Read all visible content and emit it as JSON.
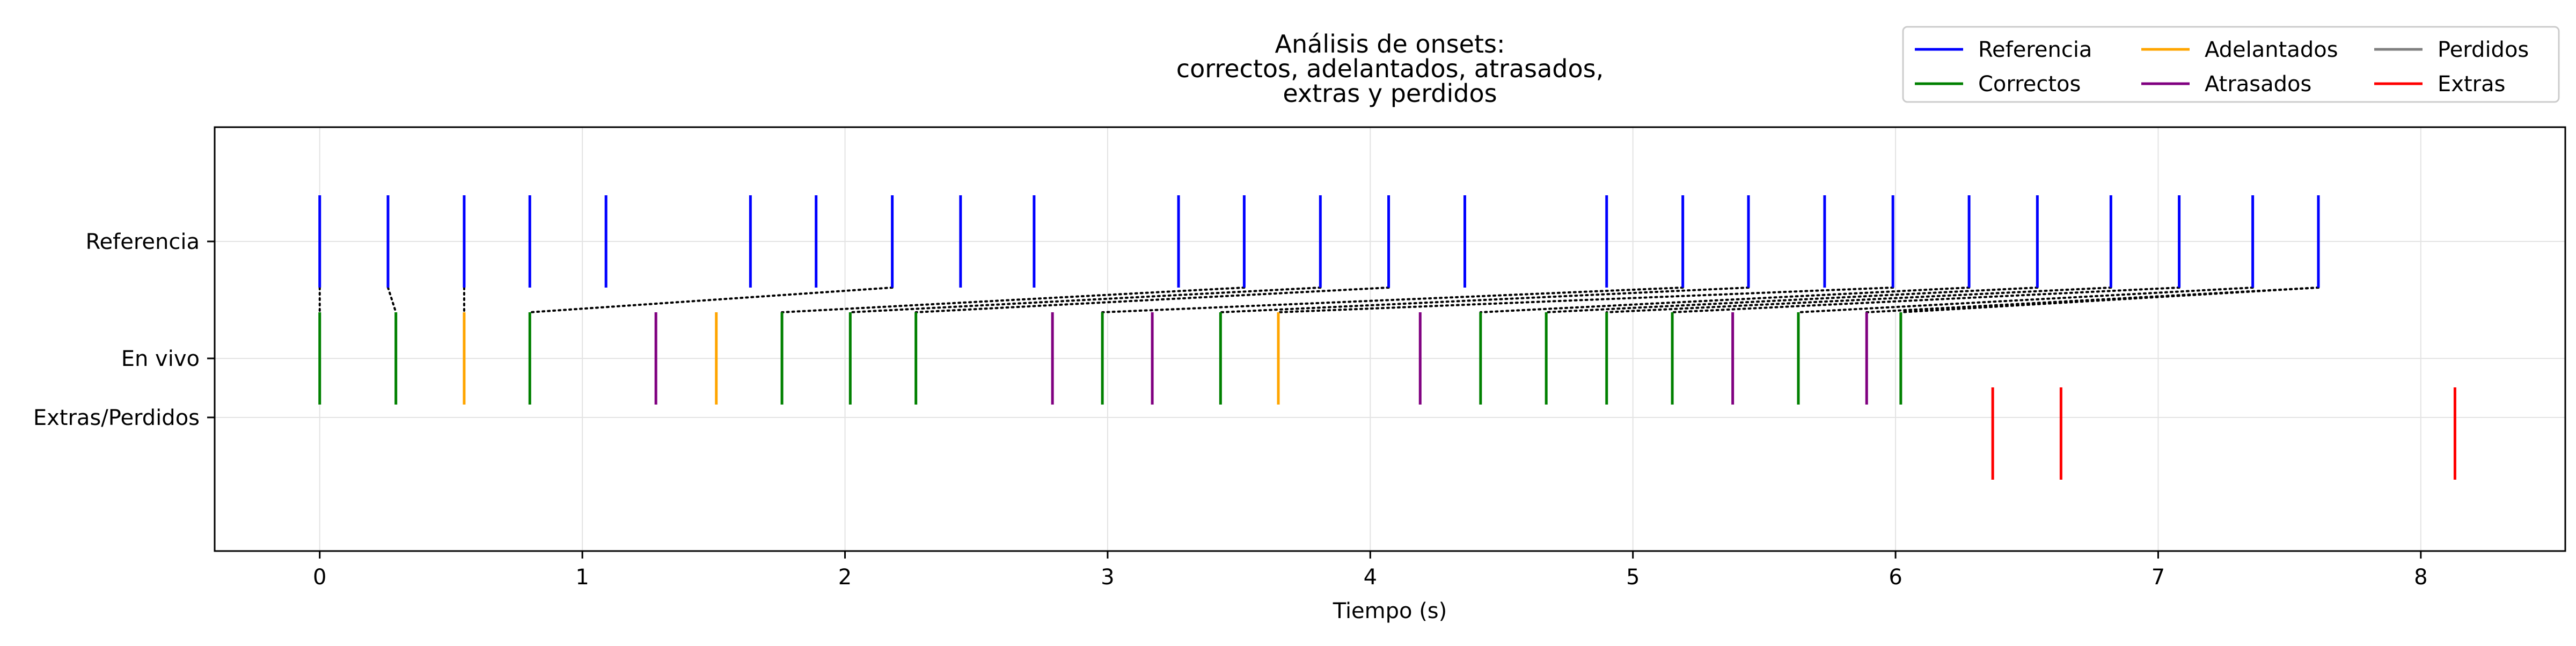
{
  "chart_data": {
    "type": "event-plot",
    "title": [
      "Análisis de onsets:",
      "correctos, adelantados, atrasados,",
      "extras y perdidos"
    ],
    "xlabel": "Tiempo (s)",
    "ylabel": "",
    "xlim": [
      -0.4,
      8.55
    ],
    "xticks": [
      0,
      1,
      2,
      3,
      4,
      5,
      6,
      7,
      8
    ],
    "rows": [
      "Referencia",
      "En vivo",
      "Extras/Perdidos"
    ],
    "grid": true,
    "legend": {
      "position": "top-right",
      "columns": 3,
      "entries": [
        {
          "label": "Referencia",
          "color": "#0000ff"
        },
        {
          "label": "Correctos",
          "color": "#008000"
        },
        {
          "label": "Adelantados",
          "color": "#ffa500"
        },
        {
          "label": "Atrasados",
          "color": "#800080"
        },
        {
          "label": "Perdidos",
          "color": "#808080"
        },
        {
          "label": "Extras",
          "color": "#ff0000"
        }
      ]
    },
    "reference_onsets": [
      0.0,
      0.26,
      0.55,
      0.8,
      1.09,
      1.64,
      1.89,
      2.18,
      2.44,
      2.72,
      3.27,
      3.52,
      3.81,
      4.07,
      4.36,
      4.9,
      5.19,
      5.44,
      5.73,
      5.99,
      6.28,
      6.54,
      6.82,
      7.08,
      7.36,
      7.61
    ],
    "live_onsets": [
      {
        "t": 0.0,
        "category": "Correctos"
      },
      {
        "t": 0.29,
        "category": "Correctos"
      },
      {
        "t": 0.55,
        "category": "Adelantados"
      },
      {
        "t": 0.8,
        "category": "Correctos"
      },
      {
        "t": 1.28,
        "category": "Atrasados"
      },
      {
        "t": 1.51,
        "category": "Adelantados"
      },
      {
        "t": 1.76,
        "category": "Correctos"
      },
      {
        "t": 2.02,
        "category": "Correctos"
      },
      {
        "t": 2.27,
        "category": "Correctos"
      },
      {
        "t": 2.79,
        "category": "Atrasados"
      },
      {
        "t": 2.98,
        "category": "Correctos"
      },
      {
        "t": 3.17,
        "category": "Atrasados"
      },
      {
        "t": 3.43,
        "category": "Correctos"
      },
      {
        "t": 3.65,
        "category": "Adelantados"
      },
      {
        "t": 4.19,
        "category": "Atrasados"
      },
      {
        "t": 4.42,
        "category": "Correctos"
      },
      {
        "t": 4.67,
        "category": "Correctos"
      },
      {
        "t": 4.9,
        "category": "Correctos"
      },
      {
        "t": 5.15,
        "category": "Correctos"
      },
      {
        "t": 5.38,
        "category": "Atrasados"
      },
      {
        "t": 5.63,
        "category": "Correctos"
      },
      {
        "t": 5.89,
        "category": "Atrasados"
      },
      {
        "t": 6.02,
        "category": "Correctos"
      }
    ],
    "extras": [
      6.37,
      6.63,
      8.13
    ],
    "perdidos": [],
    "matches": [
      [
        0.0,
        0.0
      ],
      [
        0.26,
        0.29
      ],
      [
        0.55,
        0.55
      ],
      [
        2.18,
        0.8
      ],
      [
        3.52,
        1.76
      ],
      [
        3.81,
        2.02
      ],
      [
        4.07,
        2.27
      ],
      [
        5.19,
        2.98
      ],
      [
        5.44,
        3.43
      ],
      [
        5.99,
        3.65
      ],
      [
        6.28,
        4.42
      ],
      [
        6.54,
        4.67
      ],
      [
        6.82,
        4.9
      ],
      [
        7.08,
        5.15
      ],
      [
        7.36,
        5.63
      ],
      [
        7.61,
        5.89
      ],
      [
        7.61,
        6.02
      ]
    ]
  }
}
